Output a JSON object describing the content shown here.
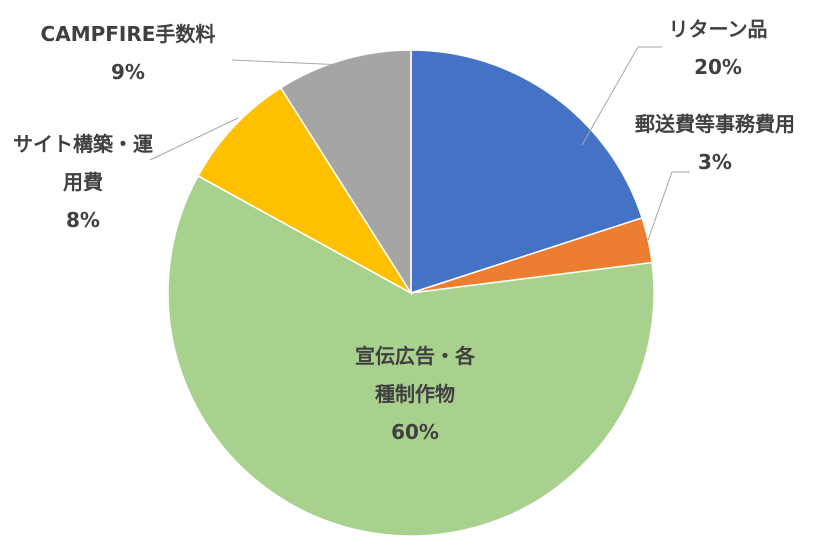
{
  "chart_data": {
    "type": "pie",
    "categories": [
      "リターン品",
      "郵送費等事務費用",
      "宣伝広告・各種制作物",
      "サイト構築・運用費",
      "CAMPFIRE手数料"
    ],
    "values": [
      20,
      3,
      60,
      8,
      9
    ],
    "value_labels": [
      "20%",
      "3%",
      "60%",
      "8%",
      "9%"
    ],
    "colors": [
      "#4472c4",
      "#ed7d31",
      "#a9d18e",
      "#ffc000",
      "#a5a5a5"
    ]
  }
}
